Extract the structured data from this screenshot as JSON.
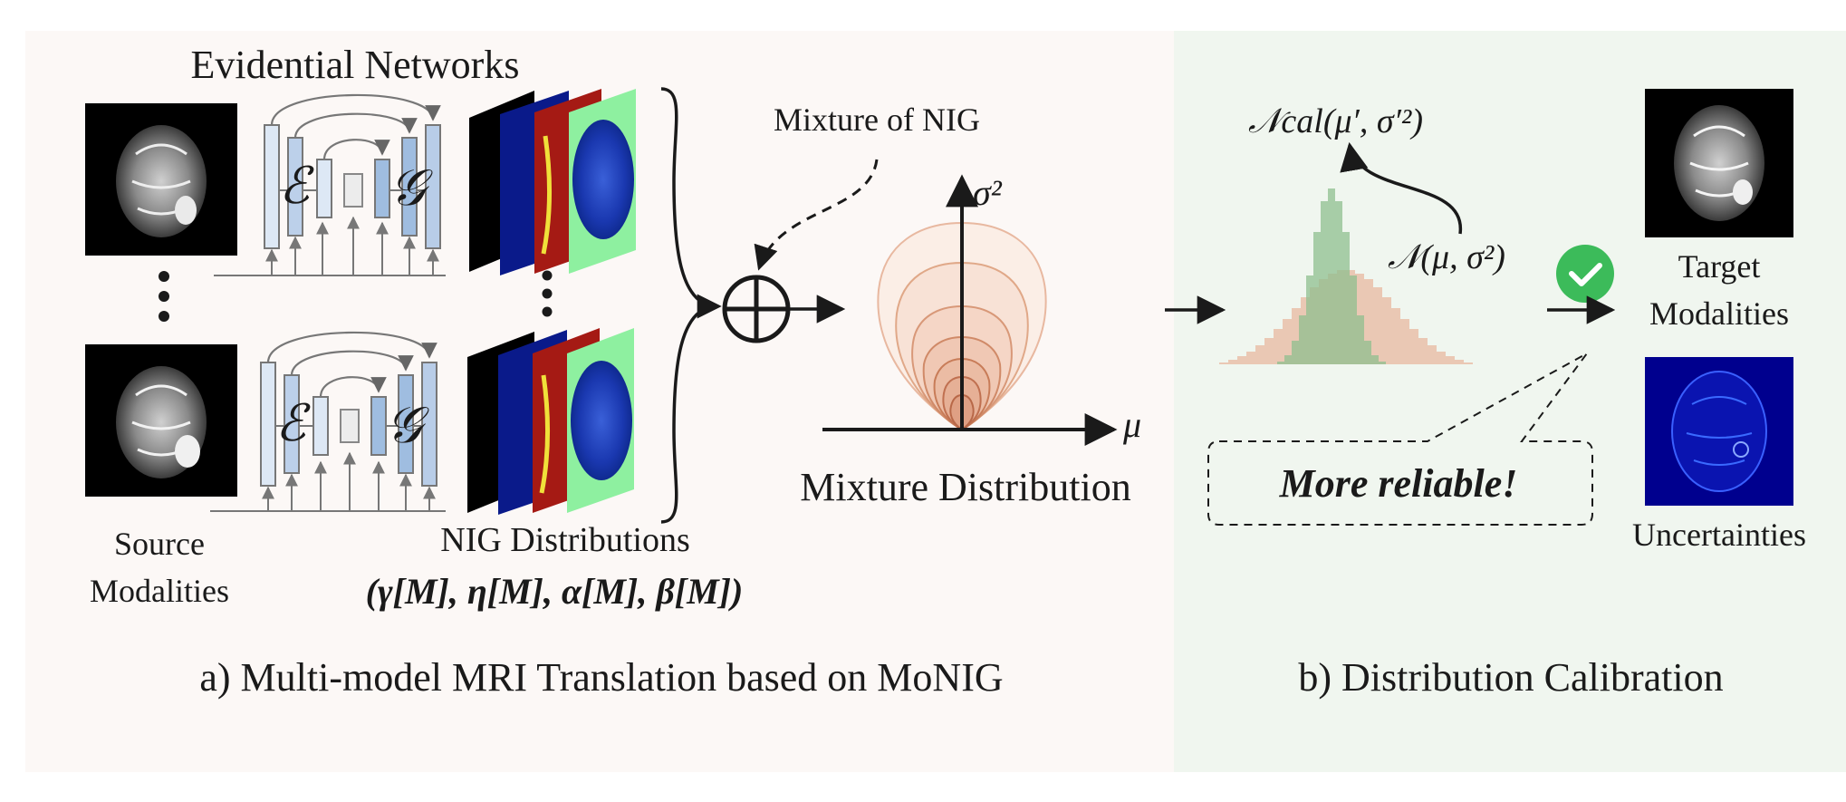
{
  "panel_a": {
    "caption": "a) Multi-model MRI Translation based on MoNIG",
    "evidential_title": "Evidential Networks",
    "encoder_symbol": "ℰ",
    "generator_symbol": "𝒢",
    "source_label_line1": "Source",
    "source_label_line2": "Modalities",
    "nig_label": "NIG Distributions",
    "nig_params": "(γ[M], η[M], α[M], β[M])",
    "mixture_of_nig": "Mixture of NIG",
    "mixture_distribution": "Mixture Distribution",
    "axis_y": "σ²",
    "axis_x": "μ"
  },
  "panel_b": {
    "caption": "b) Distribution Calibration",
    "ncal_label": "𝒩cal(μ′, σ′²)",
    "n_label": "𝒩(μ, σ²)",
    "more_reliable": "More reliable!",
    "target_line1": "Target",
    "target_line2": "Modalities",
    "uncertainties": "Uncertainties"
  },
  "colors": {
    "panel_a_bg": "#fcf8f6",
    "panel_b_bg": "#f0f6ef",
    "green_dist": "#8fbf8f",
    "orange_dist": "#e8b8a0",
    "reliable_text": "#4a7a2c",
    "check_badge": "#3cbb5a",
    "encoder_fill": "#dde8f5",
    "generator_fill": "#9fbde0"
  }
}
